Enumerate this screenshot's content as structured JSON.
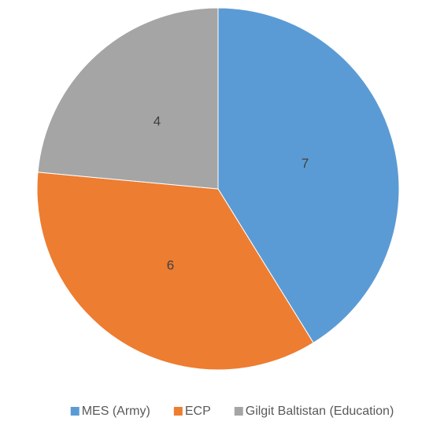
{
  "chart_data": {
    "type": "pie",
    "categories": [
      "MES (Army)",
      "ECP",
      "Gilgit Baltistan (Education)"
    ],
    "values": [
      7,
      6,
      4
    ],
    "colors": [
      "#5b9bd5",
      "#ed7d31",
      "#a5a5a5"
    ],
    "legend": "bottom"
  }
}
